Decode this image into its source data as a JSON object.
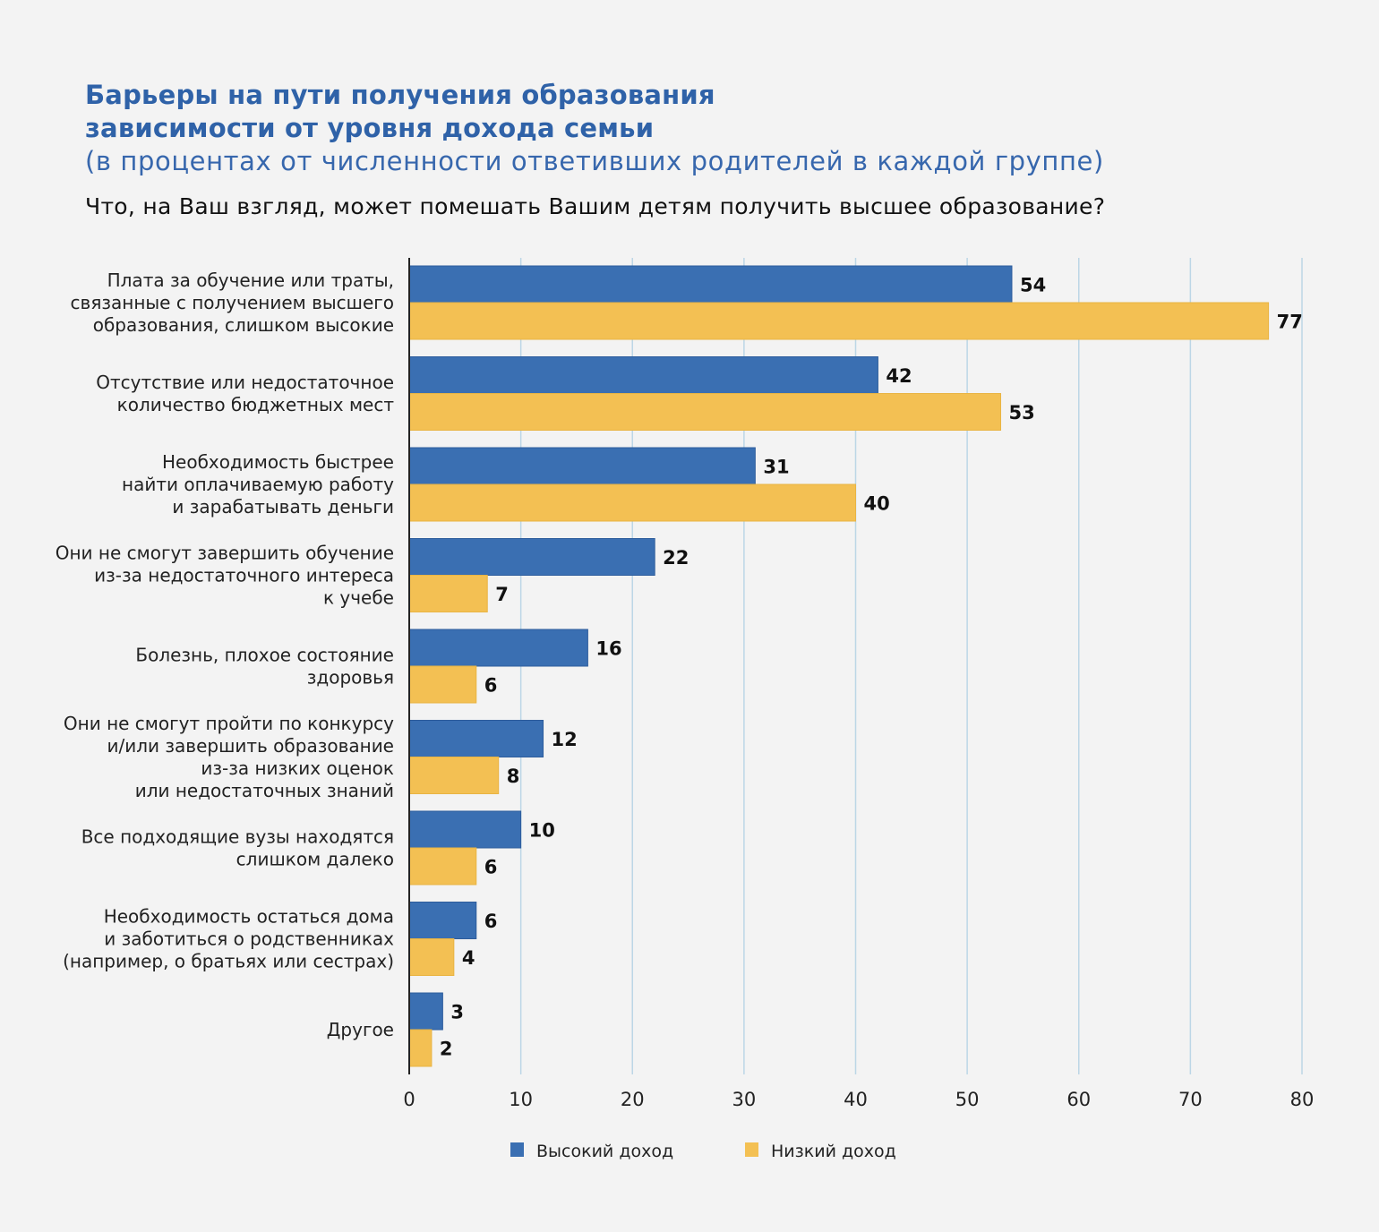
{
  "header": {
    "title_line1": "Барьеры на пути получения образования",
    "title_line2": "зависимости от уровня дохода семьи",
    "subtitle": "(в процентах от численности ответивших родителей в каждой группе)",
    "question": "Что, на Ваш взгляд, может помешать Вашим детям получить высшее образование?"
  },
  "colors": {
    "high_income": "#3a6fb2",
    "low_income": "#f3c053",
    "gridline": "#bcd6e6",
    "axis": "#222222"
  },
  "chart_data": {
    "type": "bar",
    "orientation": "horizontal",
    "title": "Барьеры на пути получения образования зависимости от уровня дохода семьи",
    "subtitle": "(в процентах от численности ответивших родителей в каждой группе)",
    "xlabel": "",
    "ylabel": "",
    "xlim": [
      0,
      80
    ],
    "xticks": [
      0,
      10,
      20,
      30,
      40,
      50,
      60,
      70,
      80
    ],
    "grid": true,
    "legend_position": "bottom",
    "categories": [
      [
        "Плата за обучение или траты,",
        "связанные с получением высшего",
        "образования, слишком высокие"
      ],
      [
        "Отсутствие или недостаточное",
        "количество бюджетных мест"
      ],
      [
        "Необходимость быстрее",
        "найти оплачиваемую работу",
        "и зарабатывать деньги"
      ],
      [
        "Они не смогут завершить обучение",
        "из-за недостаточного интереса",
        "к учебе"
      ],
      [
        "Болезнь, плохое состояние",
        "здоровья"
      ],
      [
        "Они не смогут пройти по конкурсу",
        "и/или завершить образование",
        "из-за низких оценок",
        "или недостаточных знаний"
      ],
      [
        "Все подходящие вузы находятся",
        "слишком далеко"
      ],
      [
        "Необходимость остаться дома",
        "и заботиться о родственниках",
        "(например, о братьях или сестрах)"
      ],
      [
        "Другое"
      ]
    ],
    "series": [
      {
        "name": "Высокий доход",
        "values": [
          54,
          42,
          31,
          22,
          16,
          12,
          10,
          6,
          3
        ]
      },
      {
        "name": "Низкий доход",
        "values": [
          77,
          53,
          40,
          7,
          6,
          8,
          6,
          4,
          2
        ]
      }
    ]
  }
}
